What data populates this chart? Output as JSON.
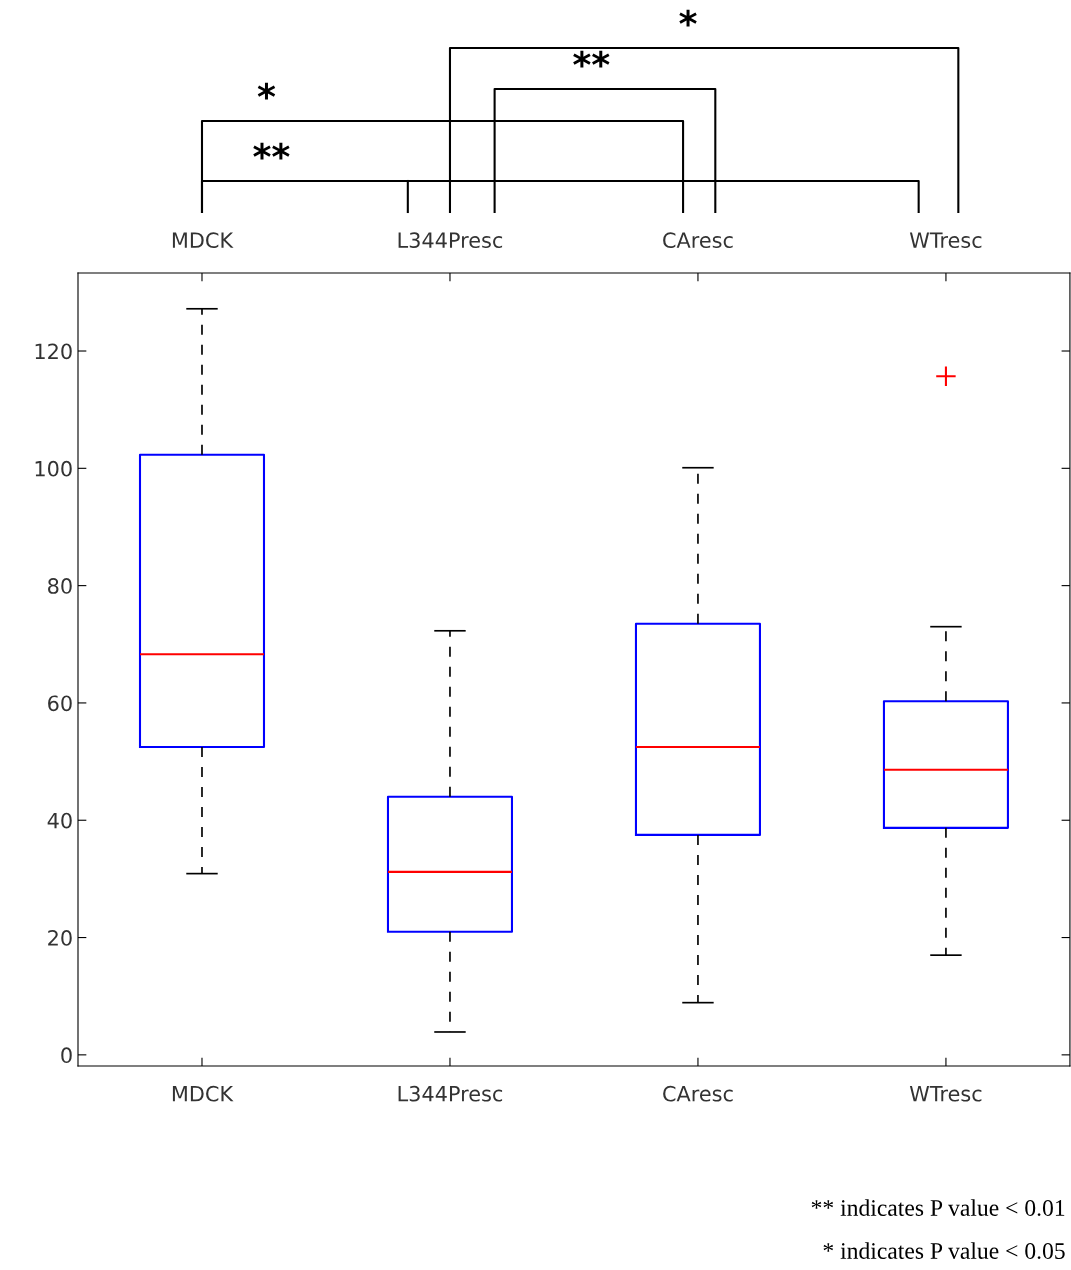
{
  "chart_data": {
    "type": "box",
    "categories": [
      "MDCK",
      "L344Presc",
      "CAresc",
      "WTresc"
    ],
    "boxes": [
      {
        "low": 30.9,
        "q1": 52.5,
        "median": 68.3,
        "q3": 102.3,
        "high": 127.2
      },
      {
        "low": 3.9,
        "q1": 21.0,
        "median": 31.2,
        "q3": 44.0,
        "high": 72.3
      },
      {
        "low": 8.9,
        "q1": 37.5,
        "median": 52.5,
        "q3": 73.5,
        "high": 100.1
      },
      {
        "low": 17.0,
        "q1": 38.7,
        "median": 48.6,
        "q3": 60.3,
        "high": 73.0,
        "outliers": [
          115.7
        ]
      }
    ],
    "color": "#0000ff",
    "ylim": [
      -1.9,
      133.3
    ],
    "yticks": [
      0,
      20,
      40,
      60,
      80,
      100,
      120
    ],
    "grid": false,
    "annotations": [
      "**",
      "*",
      "**",
      "*",
      "** indicates P value < 0.01",
      "* indicates P value < 0.05"
    ]
  }
}
